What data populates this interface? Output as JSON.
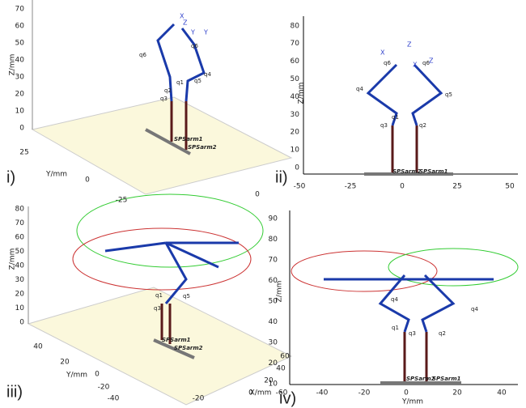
{
  "panels": [
    {
      "label": "i)",
      "z_axis_label": "Z/mm",
      "y_axis_label": "Y/mm",
      "z_ticks": [
        "0",
        "10",
        "20",
        "30",
        "40",
        "50",
        "60",
        "70"
      ],
      "y_ticks": [
        "25",
        "0",
        "-25"
      ],
      "x_ticks": [
        "0"
      ],
      "joints": [
        "q1",
        "q2",
        "q3",
        "q4",
        "q5",
        "q6",
        "q6"
      ],
      "frame": [
        "X",
        "Y",
        "Z",
        "Y"
      ],
      "arms": [
        "SPSarm1",
        "SPSarm2"
      ]
    },
    {
      "label": "ii)",
      "z_axis_label": "Z/mm",
      "z_ticks": [
        "0",
        "10",
        "20",
        "30",
        "40",
        "50",
        "60",
        "70",
        "80"
      ],
      "x_ticks": [
        "-50",
        "-25",
        "0",
        "25",
        "50"
      ],
      "joints": [
        "q1",
        "q2",
        "q3",
        "q4",
        "q5",
        "q6",
        "q6"
      ],
      "frame": [
        "X",
        "Z",
        "X",
        "Z"
      ],
      "arms": [
        "SPSarm2",
        "SPSarm1"
      ]
    },
    {
      "label": "iii)",
      "z_axis_label": "Z/mm",
      "y_axis_label": "Y/mm",
      "x_axis_label": "X/mm",
      "z_ticks": [
        "0",
        "10",
        "20",
        "30",
        "40",
        "50",
        "60",
        "70",
        "80"
      ],
      "y_ticks": [
        "40",
        "20",
        "0",
        "-20",
        "-40"
      ],
      "x_ticks": [
        "-20",
        "0",
        "20",
        "40",
        "60"
      ],
      "joints": [
        "q1",
        "q3",
        "q5"
      ],
      "arms": [
        "SPSarm1",
        "SPSarm2"
      ]
    },
    {
      "label": "iv)",
      "z_axis_label": "Z/mm",
      "x_axis_label": "Y/mm",
      "z_ticks": [
        "10",
        "20",
        "30",
        "40",
        "50",
        "60",
        "70",
        "80",
        "90"
      ],
      "x_ticks": [
        "-60",
        "-40",
        "-20",
        "0",
        "20",
        "40"
      ],
      "joints": [
        "q1",
        "q2",
        "q3",
        "q4",
        "q4"
      ],
      "arms": [
        "SPSarm2",
        "SPSarm1"
      ]
    }
  ]
}
